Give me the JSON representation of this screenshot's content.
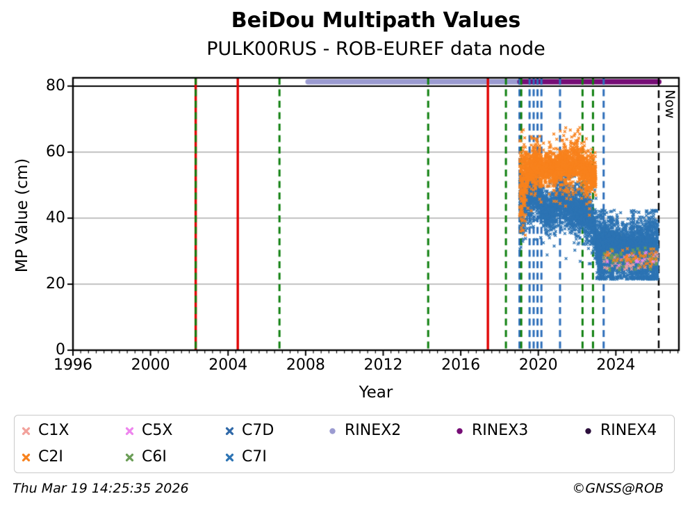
{
  "chart_data": {
    "type": "scatter",
    "title": "BeiDou Multipath Values",
    "subtitle": "PULK00RUS - ROB-EUREF data node",
    "xlabel": "Year",
    "ylabel": "MP Value (cm)",
    "xlim": [
      1996,
      2027.25
    ],
    "ylim": [
      0,
      82.5
    ],
    "xticks": [
      1996,
      2000,
      2004,
      2008,
      2012,
      2016,
      2020,
      2024
    ],
    "yticks": [
      0,
      20,
      40,
      60,
      80
    ],
    "x_minor_step": 0.4,
    "grid_y": [
      20,
      40,
      60
    ],
    "top_rule_y": 80,
    "grid_color": "#b9b9b9",
    "axis_color": "#000000",
    "now_line": {
      "year": 2026.21,
      "label": "Now",
      "color": "#000000",
      "style": "dashed"
    },
    "rinex_bars": [
      {
        "name": "RINEX2",
        "start": 2008.12,
        "end": 2019.1,
        "y": 81.3,
        "color": "#9b9bd1"
      },
      {
        "name": "RINEX3",
        "start": 2019.05,
        "end": 2026.22,
        "y": 81.3,
        "color": "#760d76"
      }
    ],
    "event_lines": [
      {
        "year": 2002.33,
        "color": "#e10000",
        "style": "solid"
      },
      {
        "year": 2002.33,
        "color": "#108010",
        "style": "dashed"
      },
      {
        "year": 2004.5,
        "color": "#e10000",
        "style": "solid"
      },
      {
        "year": 2006.65,
        "color": "#108010",
        "style": "dashed"
      },
      {
        "year": 2014.32,
        "color": "#108010",
        "style": "dashed"
      },
      {
        "year": 2017.4,
        "color": "#e10000",
        "style": "solid"
      },
      {
        "year": 2018.33,
        "color": "#108010",
        "style": "dashed"
      },
      {
        "year": 2019.03,
        "color": "#2e6fba",
        "style": "dashed"
      },
      {
        "year": 2019.12,
        "color": "#108010",
        "style": "dashed"
      },
      {
        "year": 2019.55,
        "color": "#2e6fba",
        "style": "dashed"
      },
      {
        "year": 2019.76,
        "color": "#2e6fba",
        "style": "dashed"
      },
      {
        "year": 2019.96,
        "color": "#2e6fba",
        "style": "dashed"
      },
      {
        "year": 2020.16,
        "color": "#2e6fba",
        "style": "dashed"
      },
      {
        "year": 2021.12,
        "color": "#2e6fba",
        "style": "dashed"
      },
      {
        "year": 2022.28,
        "color": "#108010",
        "style": "dashed"
      },
      {
        "year": 2022.82,
        "color": "#108010",
        "style": "dashed"
      },
      {
        "year": 2023.37,
        "color": "#2e6fba",
        "style": "dashed"
      }
    ],
    "series": [
      {
        "name": "C7D",
        "color": "#33719f",
        "x_start": 2023.05,
        "x_end": 2024.45,
        "n": 650,
        "jitter": 1.9,
        "mean_path": [
          [
            2023.05,
            32
          ],
          [
            2024.45,
            31.5
          ]
        ],
        "clip": [
          26,
          36
        ],
        "col_step": 0.02,
        "col_var": [
          0.6,
          1.6
        ]
      },
      {
        "name": "C7I",
        "color": "#2d74b4",
        "x_start": 2019.04,
        "x_end": 2023.02,
        "n": 3000,
        "jitter": 2.6,
        "mean_path": [
          [
            2019.04,
            43
          ],
          [
            2019.3,
            46
          ],
          [
            2019.55,
            48
          ],
          [
            2019.85,
            48.5
          ],
          [
            2020.05,
            46
          ],
          [
            2020.25,
            43
          ],
          [
            2020.5,
            41.5
          ],
          [
            2020.75,
            43
          ],
          [
            2021.0,
            45
          ],
          [
            2021.25,
            46
          ],
          [
            2021.5,
            44
          ],
          [
            2021.75,
            43
          ],
          [
            2022.0,
            42.5
          ],
          [
            2022.25,
            42
          ],
          [
            2022.5,
            41
          ],
          [
            2022.7,
            39.5
          ],
          [
            2022.9,
            37
          ],
          [
            2023.02,
            33
          ]
        ],
        "early": {
          "until": 2019.3,
          "extra": 4.5
        },
        "tail_down": {
          "p": 0.025,
          "s": 5
        },
        "tail_up": {
          "p": 0.008,
          "s": 3
        },
        "clip": [
          26,
          53
        ],
        "col_step": 0.02,
        "col_var": [
          0.45,
          2.1
        ]
      },
      {
        "name": "C7I",
        "color": "#2d74b4",
        "x_start": 2023.02,
        "x_end": 2026.16,
        "n": 4600,
        "jitter": 2.9,
        "mean_path": [
          [
            2023.02,
            30.5
          ],
          [
            2024.0,
            30
          ],
          [
            2025.0,
            30
          ],
          [
            2026.16,
            29.5
          ]
        ],
        "tail_up": {
          "p": 0.004,
          "s": 4.5
        },
        "tail_down": {
          "p": 0.007,
          "s": 3.5
        },
        "clip": [
          21.5,
          42.5
        ],
        "col_step": 0.02,
        "col_var": [
          0.5,
          2.3
        ]
      },
      {
        "name": "C2I",
        "color": "#f8821d",
        "x_start": 2019.04,
        "x_end": 2022.97,
        "n": 2500,
        "jitter": 2.1,
        "mean_path": [
          [
            2019.04,
            49
          ],
          [
            2019.25,
            51
          ],
          [
            2019.5,
            54
          ],
          [
            2019.75,
            56
          ],
          [
            2019.95,
            57
          ],
          [
            2020.15,
            54.5
          ],
          [
            2020.35,
            55.5
          ],
          [
            2020.6,
            56
          ],
          [
            2020.85,
            54
          ],
          [
            2021.1,
            56
          ],
          [
            2021.35,
            57
          ],
          [
            2021.6,
            55
          ],
          [
            2021.85,
            57
          ],
          [
            2022.05,
            58.5
          ],
          [
            2022.25,
            55.5
          ],
          [
            2022.5,
            53.5
          ],
          [
            2022.7,
            52.5
          ],
          [
            2022.97,
            53.5
          ]
        ],
        "early": {
          "until": 2019.35,
          "extra": 6
        },
        "tail_up": {
          "p": 0.012,
          "s": 3.5
        },
        "tail_down": {
          "p": 0.02,
          "s": 4.5
        },
        "clip": [
          24,
          67.5
        ],
        "col_step": 0.02,
        "col_var": [
          0.45,
          2.1
        ]
      },
      {
        "name": "C1X",
        "color": "#f2a29c",
        "x_start": 2023.35,
        "x_end": 2026.14,
        "n": 55,
        "jitter": 1.3,
        "mean_path": [
          [
            2023.35,
            27
          ],
          [
            2026.14,
            27
          ]
        ],
        "clip": [
          24.5,
          30
        ],
        "col_step": 0.02,
        "col_var": [
          1,
          1
        ]
      },
      {
        "name": "C6I",
        "color": "#6b9e57",
        "x_start": 2023.3,
        "x_end": 2026.15,
        "n": 65,
        "jitter": 1.6,
        "mean_path": [
          [
            2023.3,
            27.5
          ],
          [
            2026.15,
            27.5
          ]
        ],
        "clip": [
          24,
          31
        ],
        "col_step": 0.02,
        "col_var": [
          1,
          1
        ]
      },
      {
        "name": "C5X",
        "color": "#ee85ee",
        "x_start": 2023.5,
        "x_end": 2026.1,
        "n": 20,
        "jitter": 1.2,
        "mean_path": [
          [
            2023.5,
            27.5
          ],
          [
            2026.1,
            27.5
          ]
        ],
        "clip": [
          25,
          30
        ],
        "col_step": 0.02,
        "col_var": [
          1,
          1
        ]
      },
      {
        "name": "C2I",
        "color": "#f8821d",
        "x_start": 2023.3,
        "x_end": 2026.1,
        "n": 45,
        "jitter": 1.5,
        "mean_path": [
          [
            2023.3,
            28
          ],
          [
            2026.1,
            28
          ]
        ],
        "clip": [
          25,
          31
        ],
        "col_step": 0.02,
        "col_var": [
          1,
          1
        ]
      }
    ],
    "legend": {
      "entries": [
        {
          "label": "C1X",
          "marker": "x",
          "color": "#f2a29c",
          "row": 0,
          "col": 0
        },
        {
          "label": "C5X",
          "marker": "x",
          "color": "#ee85ee",
          "row": 0,
          "col": 1
        },
        {
          "label": "C7D",
          "marker": "x",
          "color": "#3069a8",
          "row": 0,
          "col": 2
        },
        {
          "label": "RINEX2",
          "marker": "dot",
          "color": "#9b9bd1",
          "row": 0,
          "col": 3
        },
        {
          "label": "RINEX3",
          "marker": "dot",
          "color": "#760d76",
          "row": 0,
          "col": 4
        },
        {
          "label": "RINEX4",
          "marker": "dot",
          "color": "#2c0f3c",
          "row": 0,
          "col": 5
        },
        {
          "label": "C2I",
          "marker": "x",
          "color": "#f8821d",
          "row": 1,
          "col": 0
        },
        {
          "label": "C6I",
          "marker": "x",
          "color": "#6b9e57",
          "row": 1,
          "col": 1
        },
        {
          "label": "C7I",
          "marker": "x",
          "color": "#2d74b4",
          "row": 1,
          "col": 2
        }
      ]
    }
  },
  "footer": {
    "timestamp": "Thu Mar 19 14:25:35 2026",
    "credit": "©GNSS@ROB"
  }
}
